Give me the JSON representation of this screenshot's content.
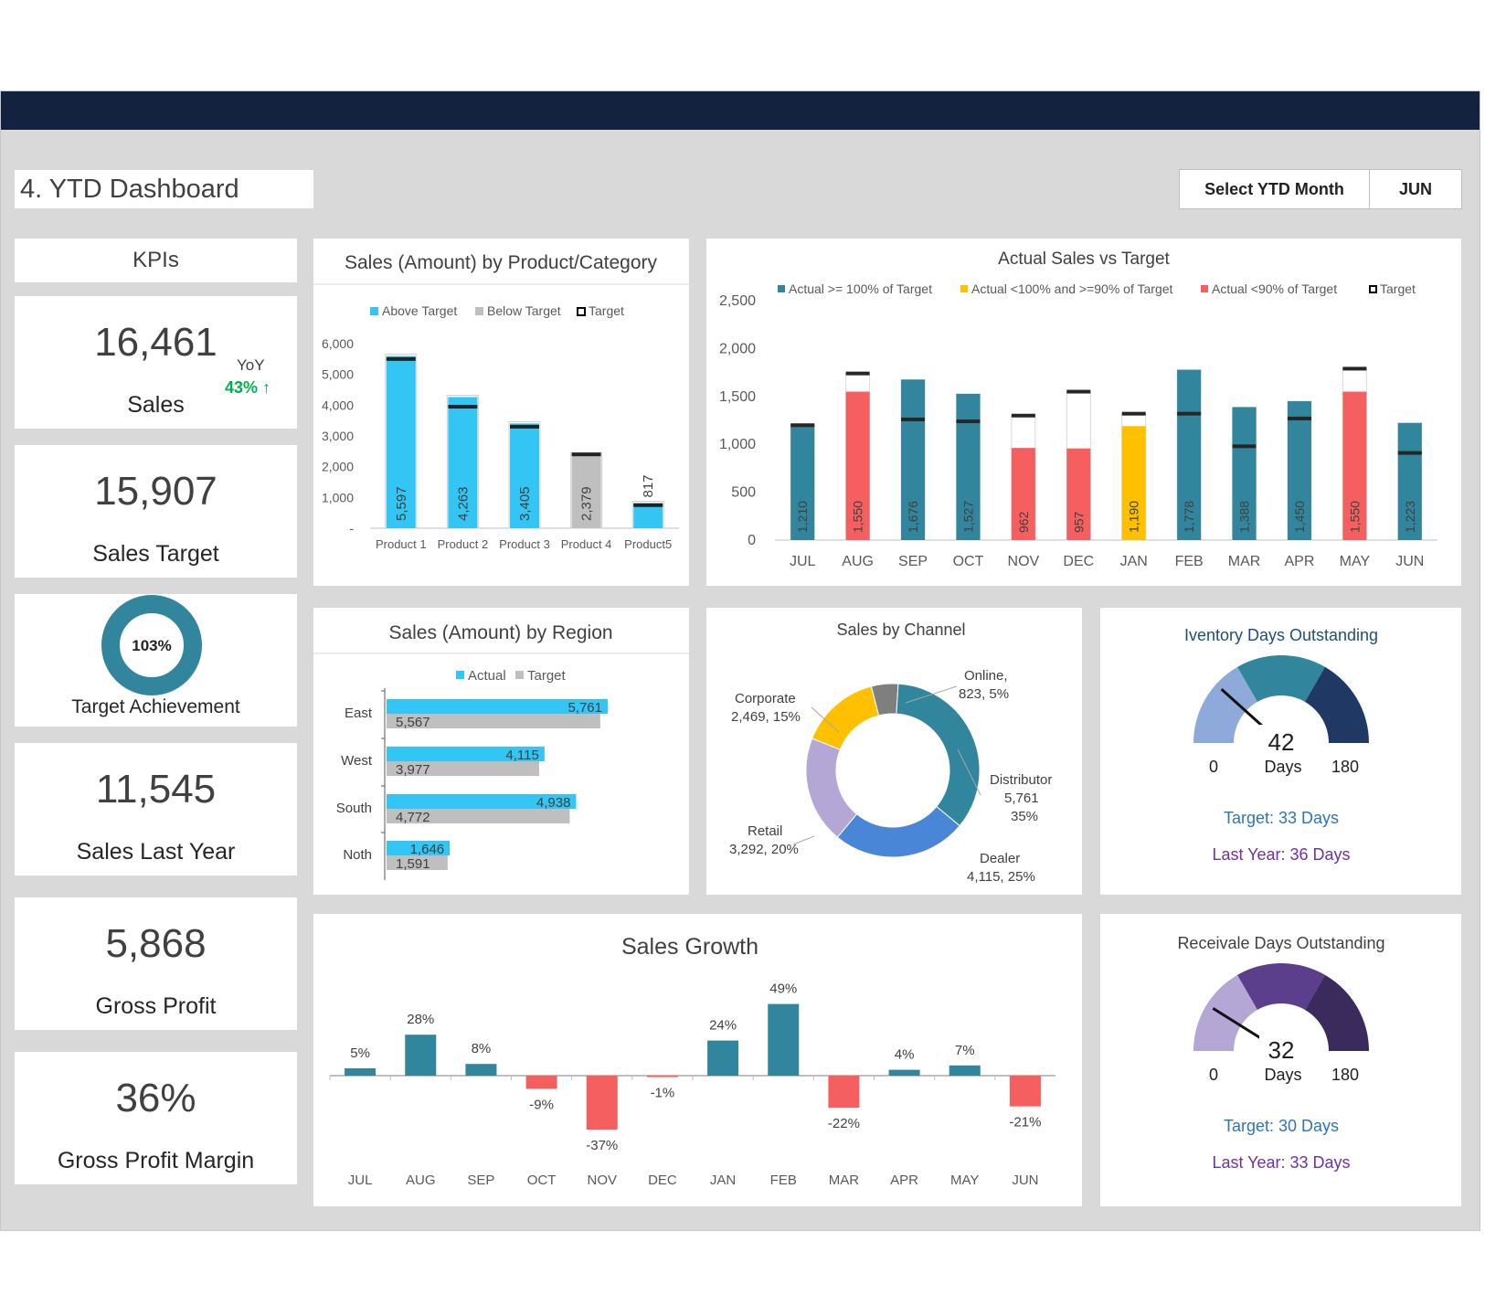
{
  "header": {
    "title": "4. YTD Dashboard",
    "select_label": "Select YTD Month",
    "select_value": "JUN"
  },
  "colors": {
    "teal": "#31859c",
    "cyan": "#33c5f3",
    "red": "#f55f5f",
    "yellow": "#ffc000",
    "gray": "#bfbfbf",
    "navy": "#13233f",
    "green": "#00b050"
  },
  "kpis": {
    "header": "KPIs",
    "sales": {
      "value": "16,461",
      "label": "Sales",
      "yoy_label": "YoY",
      "yoy_value": "43%",
      "yoy_arrow": "↑"
    },
    "sales_target": {
      "value": "15,907",
      "label": "Sales Target"
    },
    "achievement": {
      "value": "103%",
      "label": "Target Achievement",
      "fraction": 1.03
    },
    "sales_last_year": {
      "value": "11,545",
      "label": "Sales Last Year"
    },
    "gross_profit": {
      "value": "5,868",
      "label": "Gross Profit"
    },
    "gross_profit_margin": {
      "value": "36%",
      "label": "Gross Profit Margin"
    }
  },
  "chart_data": [
    {
      "type": "bar",
      "title": "Sales (Amount) by Product/Category",
      "legend": [
        "Above Target",
        "Below Target",
        "Target"
      ],
      "categories": [
        "Product 1",
        "Product 2",
        "Product 3",
        "Product 4",
        "Product5"
      ],
      "values": [
        5597,
        4263,
        3405,
        2379,
        817
      ],
      "value_labels": [
        "5,597",
        "4,263",
        "3,405",
        "2,379",
        "817"
      ],
      "targets": [
        5500,
        3950,
        3300,
        2400,
        750
      ],
      "status": [
        "above",
        "above",
        "above",
        "below",
        "above"
      ],
      "yticks": [
        "-",
        "1,000",
        "2,000",
        "3,000",
        "4,000",
        "5,000",
        "6,000"
      ],
      "ylim": [
        0,
        6000
      ]
    },
    {
      "type": "bar",
      "title": "Actual Sales vs Target",
      "legend": [
        "Actual >= 100% of Target",
        "Actual <100% and >=90% of Target",
        "Actual <90% of Target",
        "Target"
      ],
      "categories": [
        "JUL",
        "AUG",
        "SEP",
        "OCT",
        "NOV",
        "DEC",
        "JAN",
        "FEB",
        "MAR",
        "APR",
        "MAY",
        "JUN"
      ],
      "values": [
        1210,
        1550,
        1676,
        1527,
        962,
        957,
        1190,
        1778,
        1388,
        1450,
        1550,
        1223
      ],
      "value_labels": [
        "1,210",
        "1,550",
        "1,676",
        "1,527",
        "962",
        "957",
        "1,190",
        "1,778",
        "1,388",
        "1,450",
        "1,550",
        "1,223"
      ],
      "targets": [
        1200,
        1740,
        1260,
        1240,
        1300,
        1550,
        1320,
        1320,
        980,
        1270,
        1790,
        910
      ],
      "status": [
        "high",
        "low",
        "high",
        "high",
        "low",
        "low",
        "mid",
        "high",
        "high",
        "high",
        "low",
        "high"
      ],
      "yticks": [
        "0",
        "500",
        "1,000",
        "1,500",
        "2,000",
        "2,500"
      ],
      "ylim": [
        0,
        2500
      ]
    },
    {
      "type": "bar",
      "orientation": "horizontal",
      "title": "Sales (Amount) by Region",
      "legend": [
        "Actual",
        "Target"
      ],
      "categories": [
        "East",
        "West",
        "South",
        "Noth"
      ],
      "series": [
        {
          "name": "Actual",
          "values": [
            5761,
            4115,
            4938,
            1646
          ],
          "labels": [
            "5,761",
            "4,115",
            "4,938",
            "1,646"
          ]
        },
        {
          "name": "Target",
          "values": [
            5567,
            3977,
            4772,
            1591
          ],
          "labels": [
            "5,567",
            "3,977",
            "4,772",
            "1,591"
          ]
        }
      ]
    },
    {
      "type": "pie",
      "title": "Sales by Channel",
      "slices": [
        {
          "name": "Online,",
          "value": 823,
          "label": "823, 5%",
          "color": "#7f7f7f"
        },
        {
          "name": "Distributor",
          "value": 5761,
          "label": "5,761",
          "pct": "35%",
          "color": "#31859c"
        },
        {
          "name": "Dealer",
          "value": 4115,
          "label": "4,115, 25%",
          "color": "#4a86d8"
        },
        {
          "name": "Retail",
          "value": 3292,
          "label": "3,292, 20%",
          "color": "#b4a7d6"
        },
        {
          "name": "Corporate",
          "value": 2469,
          "label": "2,469, 15%",
          "color": "#ffc000"
        }
      ]
    },
    {
      "type": "bar",
      "title": "Sales Growth",
      "categories": [
        "JUL",
        "AUG",
        "SEP",
        "OCT",
        "NOV",
        "DEC",
        "JAN",
        "FEB",
        "MAR",
        "APR",
        "MAY",
        "JUN"
      ],
      "values": [
        5,
        28,
        8,
        -9,
        -37,
        -1,
        24,
        49,
        -22,
        4,
        7,
        -21
      ],
      "value_labels": [
        "5%",
        "28%",
        "8%",
        "-9%",
        "-37%",
        "-1%",
        "24%",
        "49%",
        "-22%",
        "4%",
        "7%",
        "-21%"
      ]
    }
  ],
  "gauges": {
    "inventory": {
      "title": "Iventory Days Outstanding",
      "value": 42,
      "min": 0,
      "max": 180,
      "min_label": "0",
      "max_label": "180",
      "value_label": "42",
      "unit": "Days",
      "target": "Target: 33 Days",
      "last_year": "Last Year: 36 Days",
      "colors": [
        "#8eaadb",
        "#31859c",
        "#203864"
      ],
      "title_color": "#1f4e79"
    },
    "receivable": {
      "title": "Receivale Days Outstanding",
      "value": 32,
      "min": 0,
      "max": 180,
      "min_label": "0",
      "max_label": "180",
      "value_label": "32",
      "unit": "Days",
      "target": "Target: 30 Days",
      "last_year": "Last Year: 33 Days",
      "colors": [
        "#b4a7d6",
        "#5b3f8c",
        "#3b2a5c"
      ],
      "title_color": "#404040"
    }
  }
}
